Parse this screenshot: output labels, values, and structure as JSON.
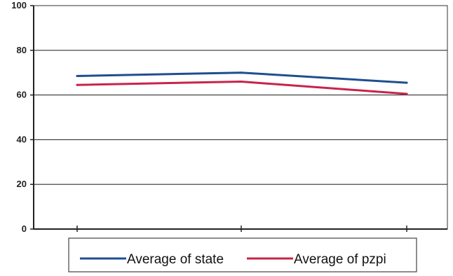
{
  "chart_data": {
    "type": "line",
    "title": "",
    "xlabel": "",
    "ylabel": "",
    "categories": [
      "",
      "",
      ""
    ],
    "ylim": [
      0,
      100
    ],
    "yticks": [
      0,
      20,
      40,
      60,
      80,
      100
    ],
    "grid": true,
    "legend_position": "bottom",
    "series": [
      {
        "name": "Average of state",
        "color": "#1f4e91",
        "values": [
          68.5,
          70,
          65.5
        ]
      },
      {
        "name": "Average of pzpi",
        "color": "#c8234a",
        "values": [
          64.5,
          66,
          60.5
        ]
      }
    ]
  }
}
